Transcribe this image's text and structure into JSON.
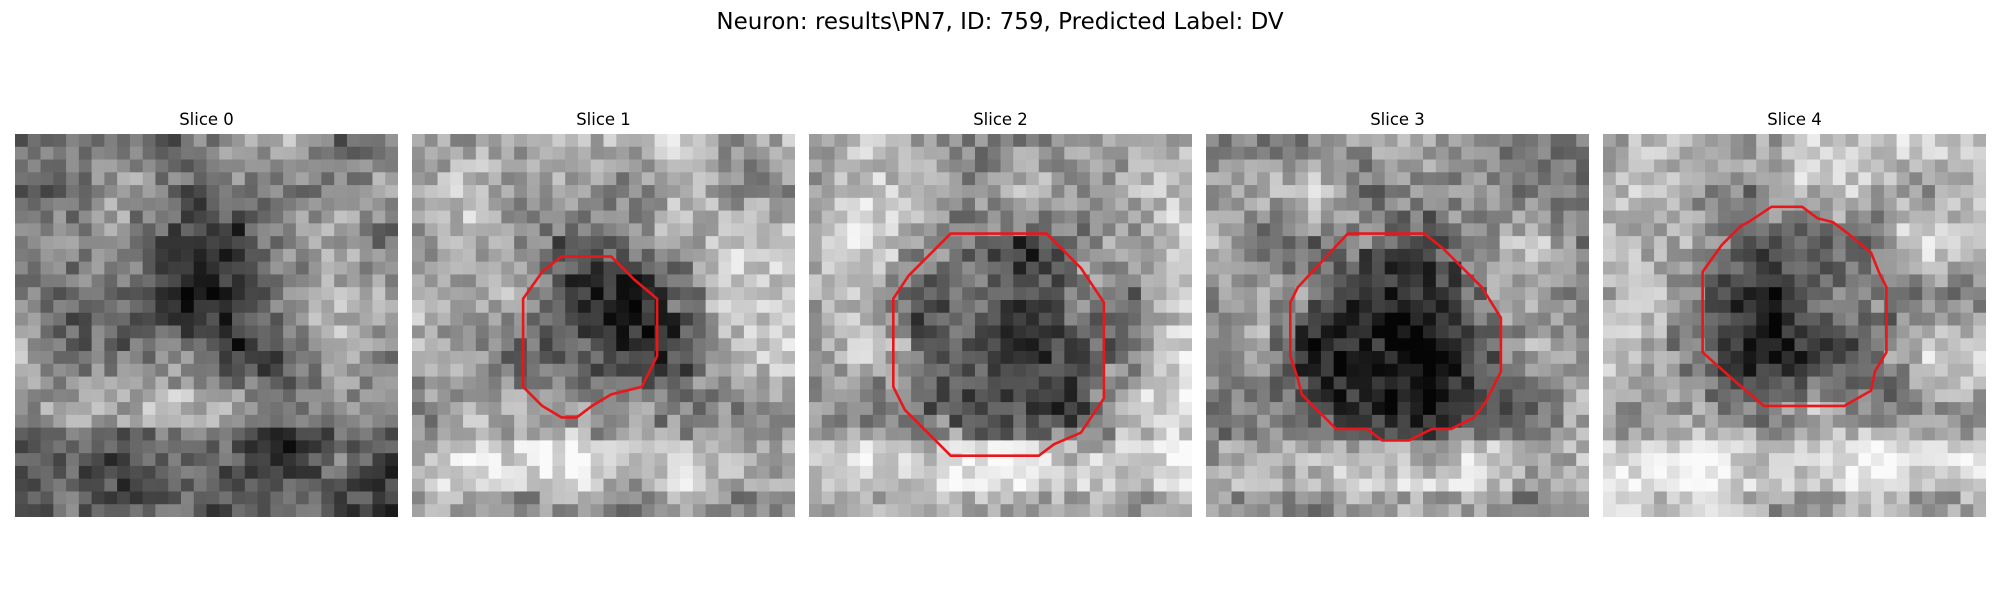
{
  "figure": {
    "title": "Neuron: results\\PN7, ID: 759, Predicted Label: DV"
  },
  "panels": [
    {
      "title": "Slice 0",
      "has_contour": false
    },
    {
      "title": "Slice 1",
      "has_contour": true
    },
    {
      "title": "Slice 2",
      "has_contour": true
    },
    {
      "title": "Slice 3",
      "has_contour": true
    },
    {
      "title": "Slice 4",
      "has_contour": true
    }
  ],
  "colors": {
    "contour": "#e8171b",
    "background": "#ffffff"
  }
}
